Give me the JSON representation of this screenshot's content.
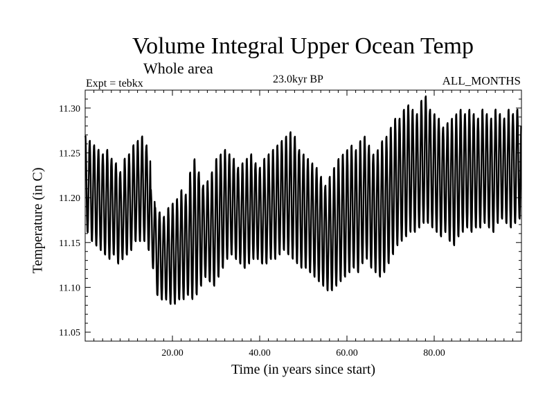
{
  "chart_data": {
    "type": "line",
    "title": "Volume Integral Upper Ocean Temp",
    "subtitle": "Whole area",
    "experiment_label": "Expt = tebkx",
    "period_label": "23.0kyr BP",
    "months_label": "ALL_MONTHS",
    "xlabel": "Time (in years since start)",
    "ylabel": "Temperature (in C)",
    "xlim": [
      0,
      100
    ],
    "ylim": [
      11.04,
      11.32
    ],
    "xticks": [
      20,
      40,
      60,
      80
    ],
    "xtick_labels": [
      "20.00",
      "40.00",
      "60.00",
      "80.00"
    ],
    "yticks": [
      11.05,
      11.1,
      11.15,
      11.2,
      11.25,
      11.3
    ],
    "ytick_labels": [
      "11.05",
      "11.10",
      "11.15",
      "11.20",
      "11.25",
      "11.30"
    ],
    "grid": false,
    "series": [
      {
        "name": "Volume integral upper ocean temperature",
        "note": "annual-cycle oscillation, 1 cycle per year",
        "annual_max": [
          11.27,
          11.265,
          11.26,
          11.255,
          11.25,
          11.255,
          11.245,
          11.24,
          11.23,
          11.245,
          11.25,
          11.26,
          11.265,
          11.27,
          11.26,
          11.21,
          11.19,
          11.185,
          11.18,
          11.19,
          11.195,
          11.2,
          11.21,
          11.205,
          11.23,
          11.245,
          11.23,
          11.215,
          11.22,
          11.23,
          11.245,
          11.25,
          11.255,
          11.25,
          11.245,
          11.235,
          11.24,
          11.245,
          11.25,
          11.24,
          11.235,
          11.245,
          11.25,
          11.255,
          11.26,
          11.265,
          11.27,
          11.275,
          11.27,
          11.255,
          11.25,
          11.245,
          11.24,
          11.235,
          11.225,
          11.215,
          11.225,
          11.235,
          11.245,
          11.25,
          11.255,
          11.26,
          11.255,
          11.265,
          11.27,
          11.26,
          11.25,
          11.255,
          11.265,
          11.27,
          11.28,
          11.29,
          11.29,
          11.3,
          11.305,
          11.3,
          11.295,
          11.31,
          11.315,
          11.3,
          11.295,
          11.29,
          11.28,
          11.285,
          11.29,
          11.295,
          11.3,
          11.295,
          11.3,
          11.295,
          11.29,
          11.3,
          11.295,
          11.29,
          11.3,
          11.295,
          11.29,
          11.3,
          11.295,
          11.3
        ],
        "annual_min": [
          11.16,
          11.15,
          11.145,
          11.14,
          11.135,
          11.13,
          11.135,
          11.125,
          11.13,
          11.135,
          11.14,
          11.15,
          11.15,
          11.15,
          11.14,
          11.12,
          11.09,
          11.085,
          11.085,
          11.08,
          11.08,
          11.085,
          11.085,
          11.09,
          11.085,
          11.09,
          11.1,
          11.11,
          11.105,
          11.1,
          11.11,
          11.12,
          11.13,
          11.135,
          11.13,
          11.125,
          11.12,
          11.125,
          11.13,
          11.13,
          11.125,
          11.125,
          11.13,
          11.13,
          11.135,
          11.14,
          11.135,
          11.13,
          11.125,
          11.12,
          11.12,
          11.115,
          11.11,
          11.105,
          11.1,
          11.095,
          11.095,
          11.1,
          11.105,
          11.11,
          11.115,
          11.12,
          11.115,
          11.125,
          11.13,
          11.12,
          11.115,
          11.11,
          11.115,
          11.125,
          11.135,
          11.145,
          11.15,
          11.155,
          11.16,
          11.16,
          11.165,
          11.17,
          11.17,
          11.165,
          11.16,
          11.155,
          11.16,
          11.15,
          11.145,
          11.155,
          11.16,
          11.165,
          11.16,
          11.165,
          11.165,
          11.17,
          11.165,
          11.16,
          11.17,
          11.175,
          11.17,
          11.165,
          11.17,
          11.175
        ]
      }
    ]
  }
}
